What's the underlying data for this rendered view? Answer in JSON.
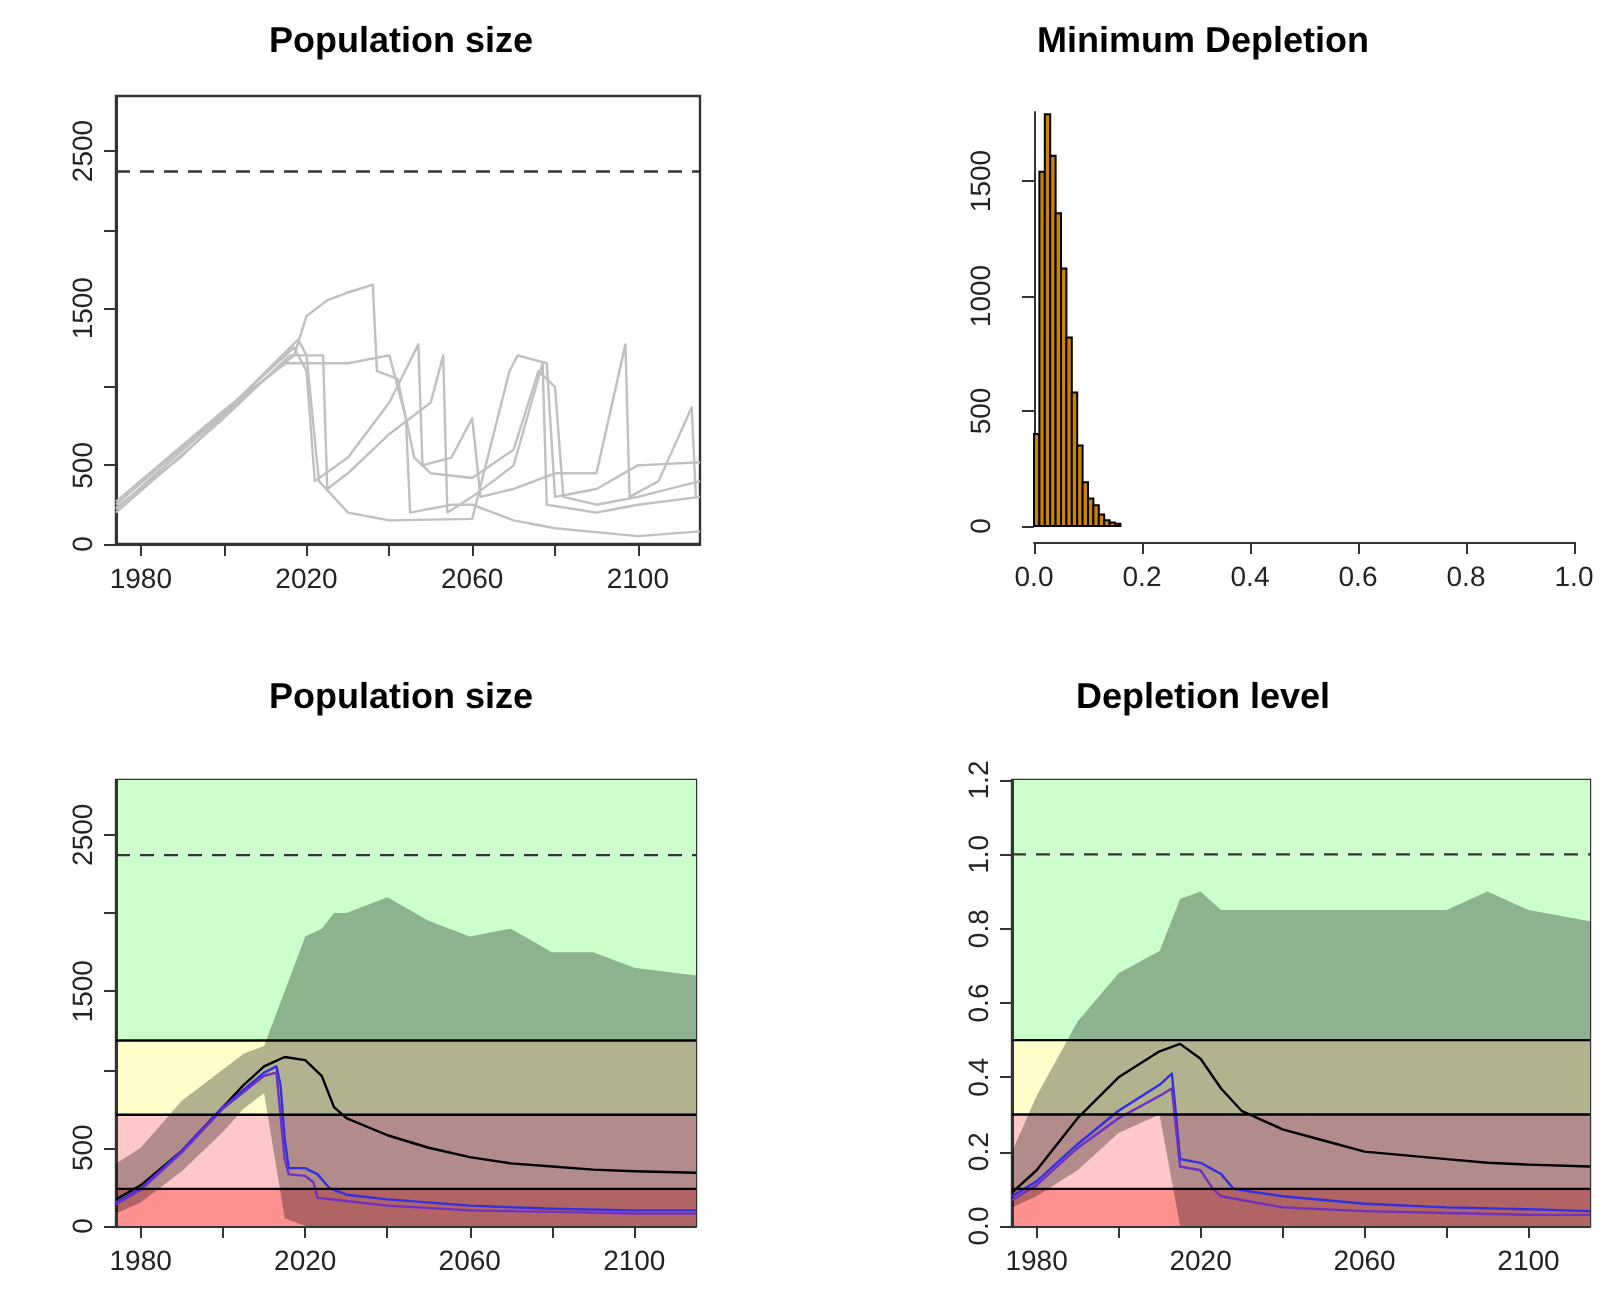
{
  "chart_data": [
    {
      "type": "line",
      "title": "Population size",
      "marker": "none",
      "xlim": [
        1974,
        2115
      ],
      "ylim": [
        0,
        2850
      ],
      "xticks": [
        1980,
        {
          "value": 2000,
          "label": null
        },
        2020,
        {
          "value": 2040,
          "label": null
        },
        2060,
        {
          "value": 2080,
          "label": null
        },
        2100
      ],
      "yticks": [
        0,
        500,
        {
          "value": 1000,
          "label": null
        },
        1500,
        {
          "value": 2000,
          "label": null
        },
        2500
      ],
      "ref_lines": [
        {
          "axis": "y",
          "value": 2370,
          "color": "#333333",
          "line_style": "dashed"
        }
      ],
      "series": [
        {
          "color": "#c0c0c0",
          "x": [
            1974,
            1990,
            2000,
            2010,
            2017,
            2020,
            2025,
            2030,
            2036,
            2037,
            2042,
            2046,
            2050,
            2060,
            2070,
            2076,
            2080,
            2082,
            2090,
            2100,
            2115
          ],
          "values": [
            230,
            560,
            820,
            1050,
            1200,
            1450,
            1550,
            1600,
            1650,
            1100,
            1050,
            550,
            450,
            420,
            600,
            1100,
            1000,
            300,
            250,
            300,
            400
          ]
        },
        {
          "color": "#c0c0c0",
          "x": [
            1974,
            2000,
            2017,
            2020,
            2022,
            2030,
            2040,
            2047,
            2048,
            2055,
            2060,
            2062,
            2070,
            2080,
            2090,
            2097,
            2098,
            2105,
            2113,
            2114
          ],
          "values": [
            250,
            840,
            1250,
            1100,
            400,
            550,
            900,
            1270,
            500,
            550,
            800,
            300,
            350,
            450,
            450,
            1270,
            300,
            400,
            870,
            300
          ]
        },
        {
          "color": "#c0c0c0",
          "x": [
            1974,
            2000,
            2016,
            2024,
            2025,
            2030,
            2040,
            2050,
            2053,
            2054,
            2060,
            2070,
            2077,
            2078,
            2090,
            2100,
            2115
          ],
          "values": [
            200,
            800,
            1200,
            1200,
            350,
            450,
            700,
            900,
            1200,
            200,
            300,
            500,
            1150,
            250,
            200,
            250,
            300
          ]
        },
        {
          "color": "#c0c0c0",
          "x": [
            1974,
            2000,
            2015,
            2030,
            2040,
            2044,
            2045,
            2055,
            2060,
            2070,
            2080,
            2100,
            2115
          ],
          "values": [
            270,
            850,
            1150,
            1150,
            1200,
            800,
            200,
            250,
            250,
            150,
            100,
            50,
            80
          ]
        },
        {
          "color": "#c0c0c0",
          "x": [
            1974,
            2000,
            2018,
            2020,
            2023,
            2030,
            2040,
            2060,
            2069,
            2071,
            2078,
            2080,
            2090,
            2100,
            2115
          ],
          "values": [
            220,
            830,
            1300,
            1200,
            400,
            200,
            150,
            160,
            1100,
            1200,
            1150,
            300,
            350,
            500,
            520
          ]
        }
      ]
    },
    {
      "type": "histogram",
      "title": "Minimum Depletion",
      "color": "#cc8400",
      "xlim": [
        0,
        1
      ],
      "ylim": [
        0,
        1800
      ],
      "xticks": [
        {
          "value": 0,
          "label": "0.0"
        },
        0.2,
        0.4,
        0.6,
        0.8,
        {
          "value": 1,
          "label": "1.0"
        }
      ],
      "yticks": [
        0,
        500,
        1000,
        1500
      ],
      "bins": [
        0,
        0.01,
        0.02,
        0.03,
        0.04,
        0.05,
        0.06,
        0.07,
        0.08,
        0.09,
        0.1,
        0.11,
        0.12,
        0.13,
        0.14,
        0.15,
        0.16,
        0.17,
        0.18,
        0.19
      ],
      "values": [
        400,
        1540,
        1790,
        1610,
        1360,
        1120,
        820,
        580,
        350,
        190,
        120,
        90,
        50,
        25,
        15,
        10,
        null,
        null,
        null
      ]
    },
    {
      "type": "line",
      "title": "Population size",
      "marker": "none",
      "xlim": [
        1974,
        2115
      ],
      "ylim": [
        0,
        2850
      ],
      "xticks": [
        1980,
        {
          "value": 2000,
          "label": null
        },
        2020,
        {
          "value": 2040,
          "label": null
        },
        2060,
        {
          "value": 2080,
          "label": null
        },
        2100
      ],
      "yticks": [
        0,
        500,
        {
          "value": 1000,
          "label": null
        },
        1500,
        {
          "value": 2000,
          "label": null
        },
        2500
      ],
      "bands": [
        {
          "axis": "y",
          "from": 0,
          "to": 237,
          "color": "#ff9090"
        },
        {
          "axis": "y",
          "from": 237,
          "to": 711,
          "color": "#ffc8c8"
        },
        {
          "axis": "y",
          "from": 711,
          "to": 1185,
          "color": "#ffffcc"
        },
        {
          "axis": "y",
          "from": 1185,
          "to": 2850,
          "color": "#ccffcc"
        }
      ],
      "ref_lines": [
        {
          "axis": "y",
          "value": 237,
          "color": "#000000",
          "line_style": "solid"
        },
        {
          "axis": "y",
          "value": 711,
          "color": "#000000",
          "line_style": "solid"
        },
        {
          "axis": "y",
          "value": 1185,
          "color": "#000000",
          "line_style": "solid"
        },
        {
          "axis": "y",
          "value": 2370,
          "color": "#333333",
          "line_style": "dashed"
        }
      ],
      "series": [
        {
          "color": "#000000",
          "x": [
            1974,
            1980,
            1990,
            2000,
            2005,
            2010,
            2015,
            2020,
            2024,
            2027,
            2030,
            2040,
            2050,
            2060,
            2070,
            2080,
            2090,
            2100,
            2115
          ],
          "values": [
            170,
            260,
            480,
            760,
            900,
            1020,
            1080,
            1060,
            960,
            760,
            690,
            580,
            500,
            440,
            400,
            380,
            360,
            350,
            340
          ],
          "lower": [
            80,
            150,
            350,
            600,
            750,
            850,
            50,
            0,
            0,
            0,
            0,
            0,
            0,
            0,
            0,
            0,
            0,
            0,
            0
          ],
          "upper": [
            400,
            500,
            800,
            1000,
            1100,
            1150,
            1500,
            1850,
            1900,
            2000,
            2000,
            2100,
            1950,
            1850,
            1900,
            1750,
            1750,
            1650,
            1600
          ]
        },
        {
          "color": "#3030e0",
          "x": [
            1974,
            1980,
            1990,
            2000,
            2010,
            2013,
            2014,
            2015,
            2016,
            2020,
            2023,
            2026,
            2030,
            2040,
            2060,
            2080,
            2100,
            2115
          ],
          "values": [
            150,
            240,
            480,
            760,
            980,
            1020,
            900,
            560,
            370,
            370,
            330,
            240,
            200,
            170,
            130,
            110,
            100,
            100
          ]
        },
        {
          "color": "#7030c0",
          "x": [
            1974,
            1980,
            1990,
            2000,
            2010,
            2013,
            2015,
            2016,
            2020,
            2022,
            2023,
            2030,
            2040,
            2060,
            2080,
            2100,
            2115
          ],
          "values": [
            140,
            230,
            470,
            750,
            960,
            980,
            430,
            330,
            320,
            280,
            180,
            160,
            130,
            100,
            90,
            80,
            80
          ]
        }
      ]
    },
    {
      "type": "line",
      "title": "Depletion level",
      "marker": "none",
      "xlim": [
        1974,
        2115
      ],
      "ylim": [
        0,
        1.2
      ],
      "xticks": [
        1980,
        {
          "value": 2000,
          "label": null
        },
        2020,
        {
          "value": 2040,
          "label": null
        },
        2060,
        {
          "value": 2080,
          "label": null
        },
        2100
      ],
      "yticks": [
        {
          "value": 0,
          "label": "0.0"
        },
        0.2,
        0.4,
        0.6,
        0.8,
        {
          "value": 1,
          "label": "1.0"
        },
        1.2
      ],
      "bands": [
        {
          "axis": "y",
          "from": 0,
          "to": 0.1,
          "color": "#ff9090"
        },
        {
          "axis": "y",
          "from": 0.1,
          "to": 0.3,
          "color": "#ffc8c8"
        },
        {
          "axis": "y",
          "from": 0.3,
          "to": 0.5,
          "color": "#ffffcc"
        },
        {
          "axis": "y",
          "from": 0.5,
          "to": 1.2,
          "color": "#ccffcc"
        }
      ],
      "ref_lines": [
        {
          "axis": "y",
          "value": 0.1,
          "color": "#000000",
          "line_style": "solid"
        },
        {
          "axis": "y",
          "value": 0.3,
          "color": "#000000",
          "line_style": "solid"
        },
        {
          "axis": "y",
          "value": 0.5,
          "color": "#000000",
          "line_style": "solid"
        },
        {
          "axis": "y",
          "value": 1,
          "color": "#333333",
          "line_style": "dashed"
        }
      ],
      "series": [
        {
          "color": "#000000",
          "x": [
            1974,
            1980,
            1990,
            2000,
            2010,
            2015,
            2020,
            2025,
            2030,
            2040,
            2050,
            2060,
            2070,
            2080,
            2090,
            2100,
            2115
          ],
          "values": [
            0.09,
            0.15,
            0.29,
            0.4,
            0.47,
            0.49,
            0.45,
            0.37,
            0.31,
            0.26,
            0.23,
            0.2,
            0.19,
            0.18,
            0.17,
            0.165,
            0.16
          ],
          "lower": [
            0.05,
            0.08,
            0.15,
            0.25,
            0.3,
            0,
            0,
            0,
            0,
            0,
            0,
            0,
            0,
            0,
            0,
            0,
            0
          ],
          "upper": [
            0.2,
            0.35,
            0.55,
            0.68,
            0.74,
            0.88,
            0.9,
            0.85,
            0.85,
            0.85,
            0.85,
            0.85,
            0.85,
            0.85,
            0.9,
            0.85,
            0.82
          ]
        },
        {
          "color": "#3030e0",
          "x": [
            1974,
            1980,
            1990,
            2000,
            2010,
            2013,
            2014,
            2015,
            2020,
            2025,
            2028,
            2040,
            2060,
            2080,
            2100,
            2115
          ],
          "values": [
            0.08,
            0.12,
            0.22,
            0.31,
            0.38,
            0.41,
            0.3,
            0.18,
            0.17,
            0.14,
            0.1,
            0.08,
            0.06,
            0.05,
            0.045,
            0.04
          ]
        },
        {
          "color": "#7030c0",
          "x": [
            1974,
            1980,
            1990,
            2000,
            2010,
            2013,
            2015,
            2020,
            2023,
            2025,
            2040,
            2060,
            2080,
            2100,
            2115
          ],
          "values": [
            0.07,
            0.11,
            0.21,
            0.29,
            0.35,
            0.37,
            0.16,
            0.15,
            0.1,
            0.08,
            0.05,
            0.04,
            0.035,
            0.03,
            0.03
          ]
        }
      ]
    }
  ]
}
